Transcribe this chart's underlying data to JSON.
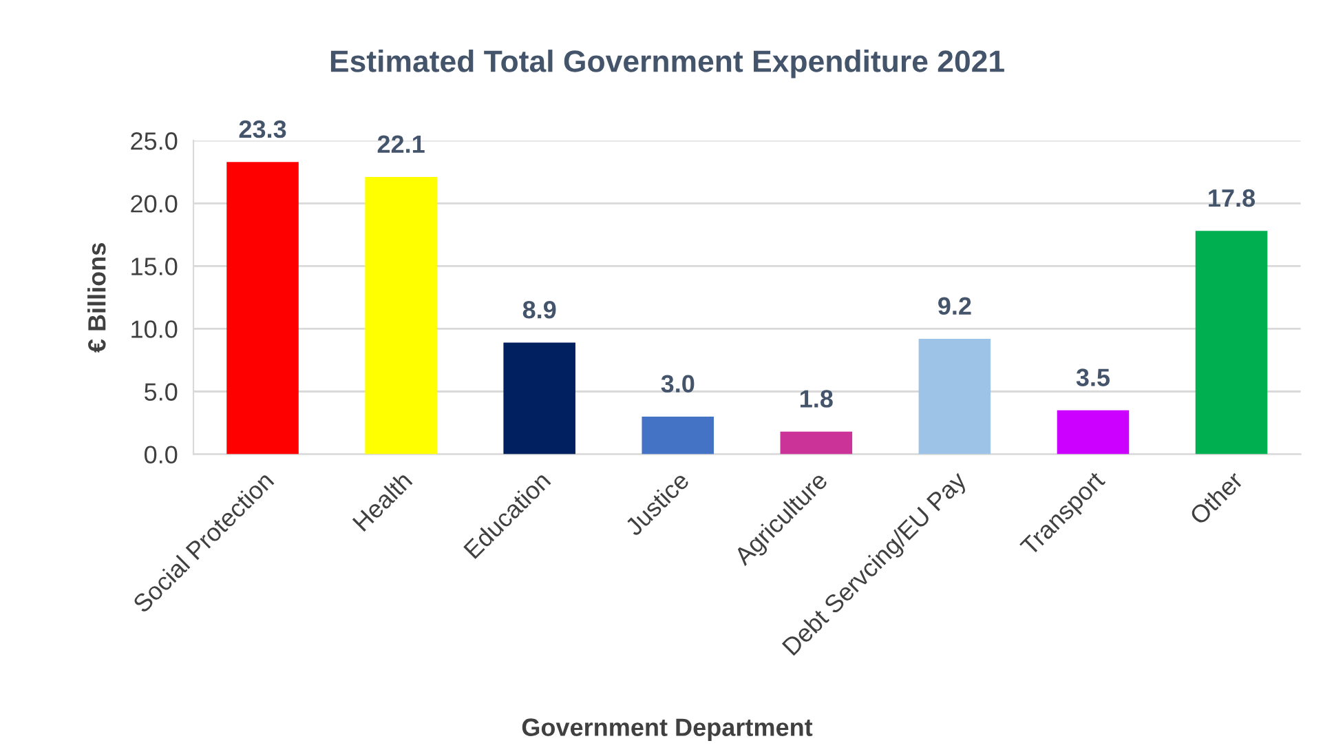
{
  "chart_data": {
    "type": "bar",
    "title": "Estimated Total Government Expenditure 2021",
    "xlabel": "Government Department",
    "ylabel": "€ Billions",
    "categories": [
      "Social Protection",
      "Health",
      "Education",
      "Justice",
      "Agriculture",
      "Debt Servcing/EU Pay",
      "Transport",
      "Other"
    ],
    "values": [
      23.3,
      22.1,
      8.9,
      3.0,
      1.8,
      9.2,
      3.5,
      17.8
    ],
    "colors": [
      "#ff0000",
      "#ffff00",
      "#002060",
      "#4472c4",
      "#cc3399",
      "#9dc3e6",
      "#cc00ff",
      "#00b050"
    ],
    "value_labels": [
      "23.3",
      "22.1",
      "8.9",
      "3.0",
      "1.8",
      "9.2",
      "3.5",
      "17.8"
    ],
    "ylim": [
      0,
      25
    ],
    "yticks": [
      {
        "value": 0,
        "label": "0.0"
      },
      {
        "value": 5,
        "label": "5.0"
      },
      {
        "value": 10,
        "label": "10.0"
      },
      {
        "value": 15,
        "label": "15.0"
      },
      {
        "value": 20,
        "label": "20.0"
      },
      {
        "value": 25,
        "label": "25.0"
      }
    ],
    "grid": "y",
    "legend": false
  }
}
